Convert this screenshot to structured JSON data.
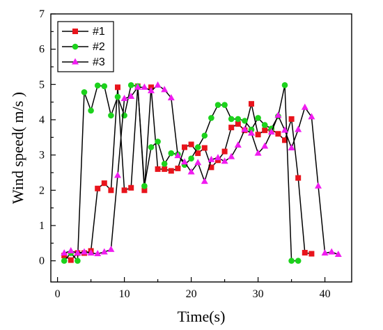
{
  "chart_data": {
    "type": "line",
    "xlabel": "Time(s)",
    "ylabel": "Wind speed( m/s )",
    "xlim": [
      -1,
      44
    ],
    "ylim": [
      -0.6,
      7
    ],
    "xticks": [
      0,
      10,
      20,
      30,
      40
    ],
    "yticks": [
      0,
      1,
      2,
      3,
      4,
      5,
      6,
      7
    ],
    "legend_position": "top-left",
    "grid": false,
    "series": [
      {
        "name": "#1",
        "color": "#e8141c",
        "marker": "square",
        "x": [
          1,
          2,
          3,
          4,
          5,
          6,
          7,
          8,
          9,
          10,
          11,
          12,
          13,
          14,
          15,
          16,
          17,
          18,
          19,
          20,
          21,
          22,
          23,
          24,
          25,
          26,
          27,
          28,
          29,
          30,
          31,
          32,
          33,
          34,
          35,
          36,
          37,
          38
        ],
        "y": [
          0.15,
          0.02,
          0.22,
          0.22,
          0.28,
          2.05,
          2.2,
          2.0,
          4.92,
          2.0,
          2.07,
          4.95,
          2.0,
          4.92,
          2.6,
          2.6,
          2.55,
          2.62,
          3.22,
          3.3,
          3.05,
          3.2,
          2.65,
          2.85,
          3.1,
          3.78,
          3.88,
          3.7,
          4.45,
          3.58,
          3.7,
          3.72,
          3.6,
          3.42,
          4.02,
          2.35,
          0.23,
          0.2
        ]
      },
      {
        "name": "#2",
        "color": "#1cd21c",
        "marker": "circle",
        "x": [
          1,
          2,
          3,
          4,
          5,
          6,
          7,
          8,
          9,
          10,
          11,
          12,
          13,
          14,
          15,
          16,
          17,
          18,
          19,
          20,
          21,
          22,
          23,
          24,
          25,
          26,
          27,
          28,
          29,
          30,
          31,
          32,
          33,
          34,
          35,
          36
        ],
        "y": [
          0.0,
          0.22,
          0.0,
          4.78,
          4.26,
          4.97,
          4.95,
          4.12,
          4.65,
          4.12,
          4.98,
          4.95,
          2.12,
          3.22,
          3.38,
          2.75,
          3.05,
          3.02,
          2.72,
          2.9,
          3.22,
          3.55,
          4.05,
          4.42,
          4.42,
          4.02,
          4.02,
          3.97,
          3.72,
          4.05,
          3.85,
          3.75,
          4.1,
          4.98,
          0.0,
          0.0
        ]
      },
      {
        "name": "#3",
        "color": "#f01cf0",
        "marker": "triangle",
        "x": [
          1,
          2,
          3,
          4,
          5,
          6,
          7,
          8,
          9,
          10,
          11,
          12,
          13,
          14,
          15,
          16,
          17,
          18,
          19,
          20,
          21,
          22,
          23,
          24,
          25,
          26,
          27,
          28,
          29,
          30,
          31,
          32,
          33,
          34,
          35,
          36,
          37,
          38,
          39,
          40,
          41,
          42
        ],
        "y": [
          0.22,
          0.28,
          0.22,
          0.25,
          0.22,
          0.2,
          0.25,
          0.32,
          2.42,
          4.6,
          4.66,
          4.92,
          4.92,
          4.82,
          4.98,
          4.85,
          4.62,
          2.98,
          2.8,
          2.52,
          2.78,
          2.25,
          2.87,
          2.92,
          2.82,
          2.95,
          3.28,
          3.72,
          3.62,
          3.05,
          3.25,
          3.65,
          4.12,
          3.7,
          3.2,
          3.72,
          4.35,
          4.08,
          2.12,
          0.22,
          0.25,
          0.18
        ]
      }
    ]
  }
}
